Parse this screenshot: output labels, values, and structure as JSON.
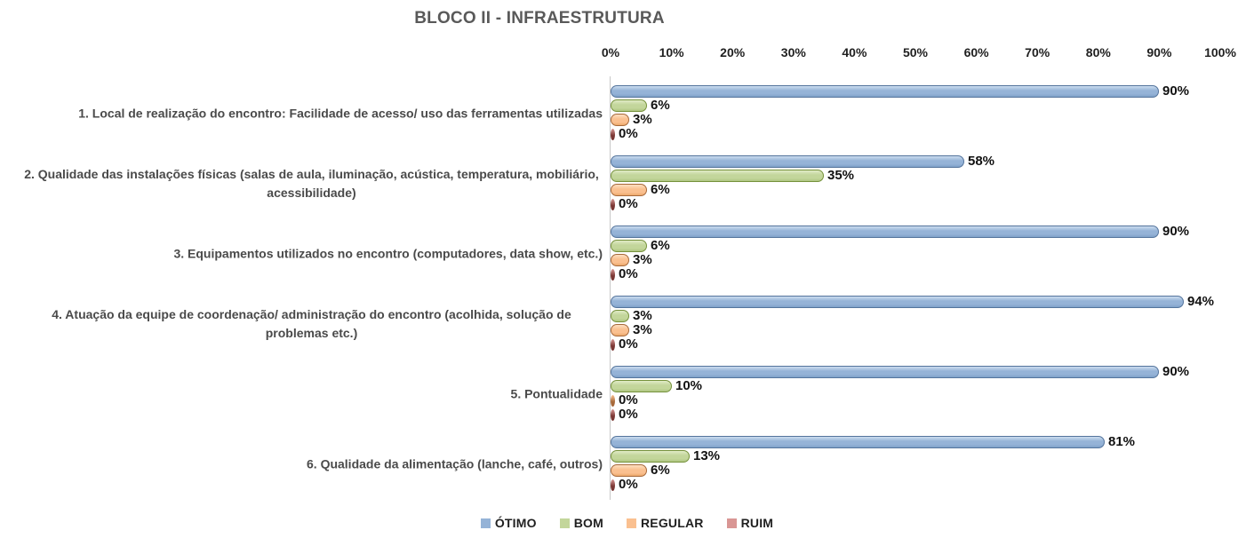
{
  "chart_data": {
    "type": "bar",
    "orientation": "horizontal",
    "title": "BLOCO II - INFRAESTRUTURA",
    "categories": [
      "1. Local de realização do encontro: Facilidade de acesso/ uso das ferramentas utilizadas",
      "2. Qualidade das instalações físicas (salas de aula, iluminação, acústica, temperatura, mobiliário, acessibilidade)",
      "3. Equipamentos utilizados no encontro (computadores, data show, etc.)",
      "4. Atuação da equipe de coordenação/ administração do encontro (acolhida, solução de problemas etc.)",
      "5. Pontualidade",
      "6. Qualidade da alimentação (lanche, café, outros)"
    ],
    "series": [
      {
        "name": "ÓTIMO",
        "values": [
          90,
          58,
          90,
          94,
          90,
          81
        ],
        "labels": [
          "90%",
          "58%",
          "90%",
          "94%",
          "90%",
          "81%"
        ],
        "color": "#95B3D7",
        "light": "#CBDCEF",
        "dark": "#7FA1C9",
        "border": "#54749C"
      },
      {
        "name": "BOM",
        "values": [
          6,
          35,
          6,
          3,
          10,
          13
        ],
        "labels": [
          "6%",
          "35%",
          "6%",
          "3%",
          "10%",
          "13%"
        ],
        "color": "#C3D69B",
        "light": "#E1EBC7",
        "dark": "#AFC682",
        "border": "#76923C"
      },
      {
        "name": "REGULAR",
        "values": [
          3,
          6,
          3,
          3,
          0,
          6
        ],
        "labels": [
          "3%",
          "6%",
          "3%",
          "3%",
          "0%",
          "6%"
        ],
        "color": "#FAC090",
        "light": "#FDDFC2",
        "dark": "#EDA96C",
        "border": "#A7693B"
      },
      {
        "name": "RUIM",
        "values": [
          0,
          0,
          0,
          0,
          0,
          0
        ],
        "labels": [
          "0%",
          "0%",
          "0%",
          "0%",
          "0%",
          "0%"
        ],
        "color": "#D99694",
        "light": "#E8BCBA",
        "dark": "#B56662",
        "border": "#7A3734"
      }
    ],
    "x_ticks": [
      "0%",
      "10%",
      "20%",
      "30%",
      "40%",
      "50%",
      "60%",
      "70%",
      "80%",
      "90%",
      "100%"
    ],
    "xlim": [
      0,
      100
    ],
    "grid": false,
    "legend_position": "bottom",
    "value_label_format": "percent",
    "axis_color": "#c8c8c8"
  }
}
